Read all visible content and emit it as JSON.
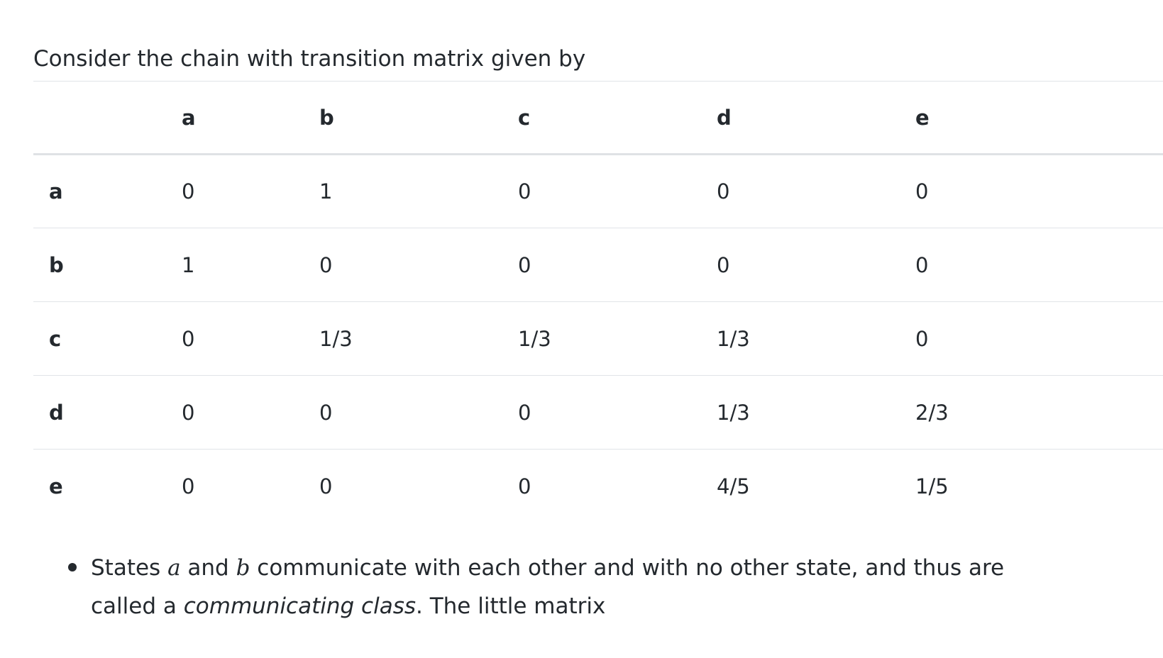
{
  "intro_text": "Consider the chain with transition matrix given by",
  "matrix": {
    "header": [
      "",
      "a",
      "b",
      "c",
      "d",
      "e"
    ],
    "rows": [
      {
        "label": "a",
        "values": [
          "0",
          "1",
          "0",
          "0",
          "0"
        ]
      },
      {
        "label": "b",
        "values": [
          "1",
          "0",
          "0",
          "0",
          "0"
        ]
      },
      {
        "label": "c",
        "values": [
          "0",
          "1/3",
          "1/3",
          "1/3",
          "0"
        ]
      },
      {
        "label": "d",
        "values": [
          "0",
          "0",
          "0",
          "1/3",
          "2/3"
        ]
      },
      {
        "label": "e",
        "values": [
          "0",
          "0",
          "0",
          "4/5",
          "1/5"
        ]
      }
    ]
  },
  "bullet": {
    "part1": "States ",
    "var_a": "a",
    "part2": " and ",
    "var_b": "b",
    "part3": " communicate with each other and with no other state, and thus are called a ",
    "emphasis": "communicating class",
    "part4": ". The little matrix"
  }
}
